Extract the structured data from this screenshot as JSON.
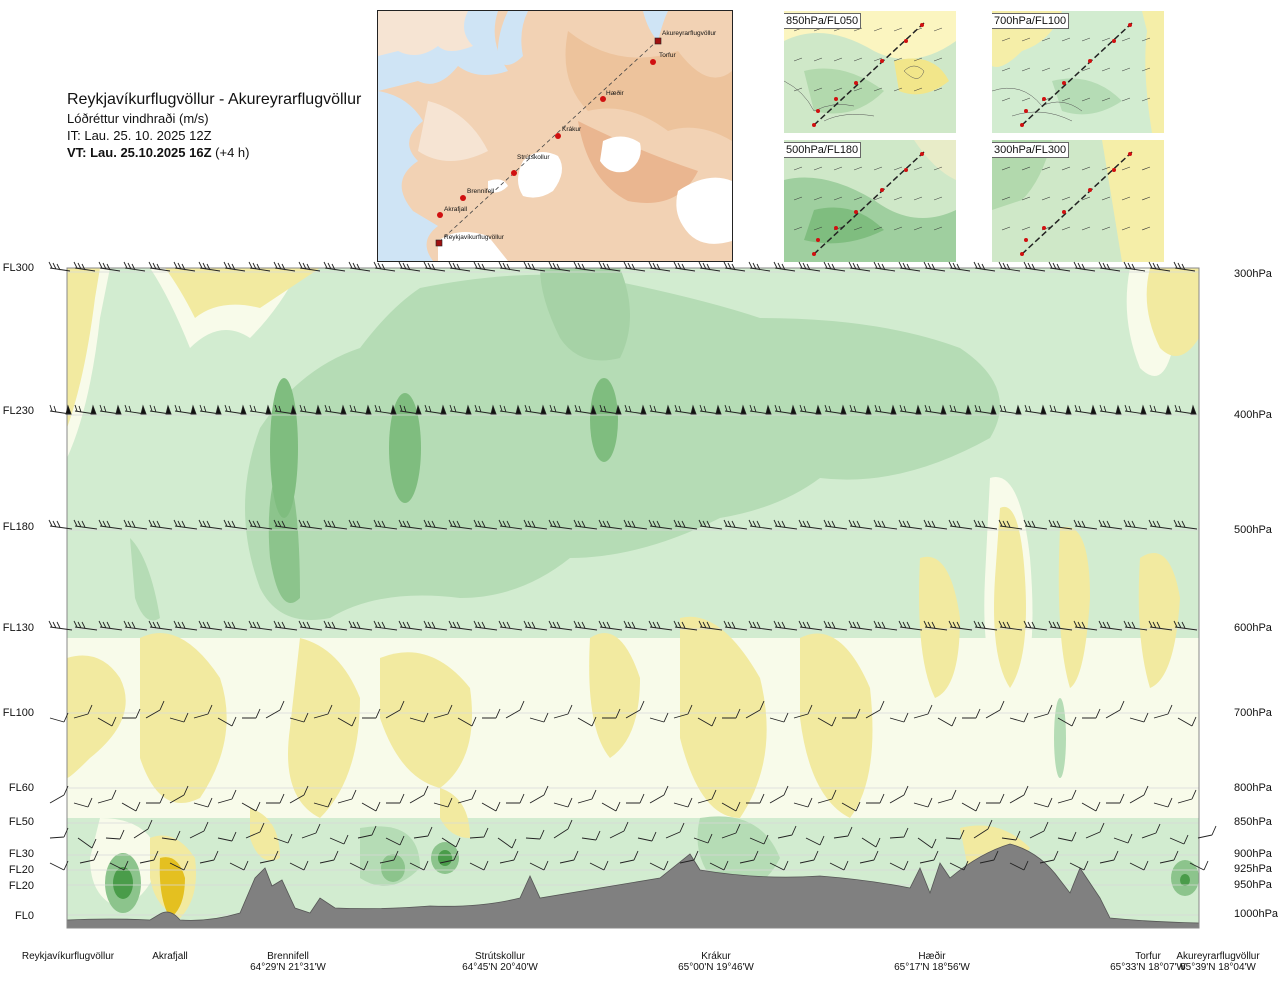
{
  "header": {
    "route": "Reykjavíkurflugvöllur - Akureyrarflugvöllur",
    "parameter": "Lóðréttur vindhraði (m/s)",
    "issue_time": "IT: Lau. 25. 10. 2025 12Z",
    "valid_time_label": "VT: Lau. 25.10.2025 16Z",
    "valid_offset": "(+4 h)"
  },
  "map": {
    "waypoints": [
      "Akureyrarflugvöllur",
      "Torfur",
      "Hæðir",
      "Krákur",
      "Strútskollur",
      "Brennifell",
      "Akrafjall",
      "Reykjavíkurflugvöllur"
    ]
  },
  "panels": [
    {
      "label": "850hPa/FL050"
    },
    {
      "label": "700hPa/FL100"
    },
    {
      "label": "500hPa/FL180"
    },
    {
      "label": "300hPa/FL300"
    }
  ],
  "levels": [
    {
      "fl": "FL300",
      "hpa": "300hPa"
    },
    {
      "fl": "FL230",
      "hpa": "400hPa"
    },
    {
      "fl": "FL180",
      "hpa": "500hPa"
    },
    {
      "fl": "FL130",
      "hpa": "600hPa"
    },
    {
      "fl": "FL100",
      "hpa": "700hPa"
    },
    {
      "fl": "FL60",
      "hpa": "800hPa"
    },
    {
      "fl": "FL50",
      "hpa": "850hPa"
    },
    {
      "fl": "FL30",
      "hpa": "900hPa"
    },
    {
      "fl": "FL20",
      "hpa": "925hPa"
    },
    {
      "fl": "FL20",
      "hpa": "950hPa"
    },
    {
      "fl": "FL0",
      "hpa": "1000hPa"
    }
  ],
  "locations": [
    {
      "name": "Reykjavíkurflugvöllur",
      "coord": ""
    },
    {
      "name": "Akrafjall",
      "coord": ""
    },
    {
      "name": "Brennifell",
      "coord": "64°29'N 21°31'W"
    },
    {
      "name": "Strútskollur",
      "coord": "64°45'N 20°40'W"
    },
    {
      "name": "Krákur",
      "coord": "65°00'N 19°46'W"
    },
    {
      "name": "Hæðir",
      "coord": "65°17'N 18°56'W"
    },
    {
      "name": "Torfur",
      "coord": "65°33'N 18°07'W"
    },
    {
      "name": "Akureyrarflugvöllur",
      "coord": "65°39'N 18°04'W"
    }
  ],
  "chart_data": {
    "type": "heatmap",
    "title": "Reykjavíkurflugvöllur - Akureyrarflugvöllur",
    "subtitle": "Lóðréttur vindhraði (m/s)",
    "x_axis": "route waypoints",
    "y_axis": "pressure level (hPa) / flight level",
    "y_levels_hpa": [
      300,
      400,
      500,
      600,
      700,
      800,
      850,
      900,
      925,
      950,
      1000
    ],
    "palette": {
      "strong_up": "#4a9c4a",
      "up": "#8cc48c",
      "weak_up": "#b5dcb5",
      "near_zero_up": "#d2ecd0",
      "neutral": "#f8fbea",
      "weak_down": "#f2eaa0",
      "strong_down": "#e4c020",
      "terrain": "#808080"
    }
  }
}
